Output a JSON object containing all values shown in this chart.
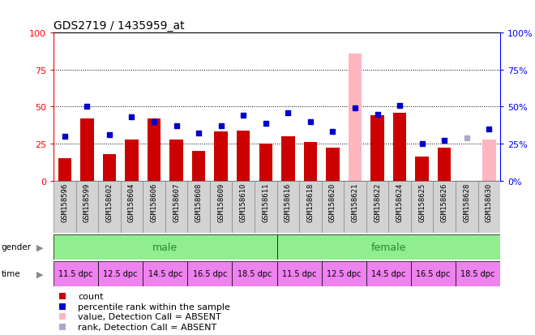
{
  "title": "GDS2719 / 1435959_at",
  "samples": [
    "GSM158596",
    "GSM158599",
    "GSM158602",
    "GSM158604",
    "GSM158606",
    "GSM158607",
    "GSM158608",
    "GSM158609",
    "GSM158610",
    "GSM158611",
    "GSM158616",
    "GSM158618",
    "GSM158620",
    "GSM158621",
    "GSM158622",
    "GSM158624",
    "GSM158625",
    "GSM158626",
    "GSM158628",
    "GSM158630"
  ],
  "bar_values": [
    15,
    42,
    18,
    28,
    42,
    28,
    20,
    33,
    34,
    25,
    30,
    26,
    22,
    86,
    44,
    46,
    16,
    22,
    0,
    28
  ],
  "bar_absent": [
    false,
    false,
    false,
    false,
    false,
    false,
    false,
    false,
    false,
    false,
    false,
    false,
    false,
    true,
    false,
    false,
    false,
    false,
    true,
    true
  ],
  "dot_values": [
    30,
    50,
    31,
    43,
    40,
    37,
    32,
    37,
    44,
    39,
    46,
    40,
    33,
    49,
    45,
    51,
    25,
    27,
    29,
    35
  ],
  "dot_absent": [
    false,
    false,
    false,
    false,
    false,
    false,
    false,
    false,
    false,
    false,
    false,
    false,
    false,
    false,
    false,
    false,
    false,
    false,
    true,
    false
  ],
  "bar_color": "#cc0000",
  "bar_absent_color": "#ffb6c1",
  "dot_color": "#0000cc",
  "dot_absent_color": "#aaaacc",
  "ylim": [
    0,
    100
  ],
  "yticks": [
    0,
    25,
    50,
    75,
    100
  ],
  "grid_lines": [
    25,
    50,
    75
  ],
  "bar_width": 0.6,
  "male_color": "#90ee90",
  "female_color": "#90ee90",
  "time_color": "#ee82ee",
  "gender_text_color": "#228B22",
  "xtick_bg_color": "#d3d3d3",
  "legend_items": [
    {
      "label": "count",
      "color": "#cc0000"
    },
    {
      "label": "percentile rank within the sample",
      "color": "#0000cc"
    },
    {
      "label": "value, Detection Call = ABSENT",
      "color": "#ffb6c1"
    },
    {
      "label": "rank, Detection Call = ABSENT",
      "color": "#aaaacc"
    }
  ]
}
